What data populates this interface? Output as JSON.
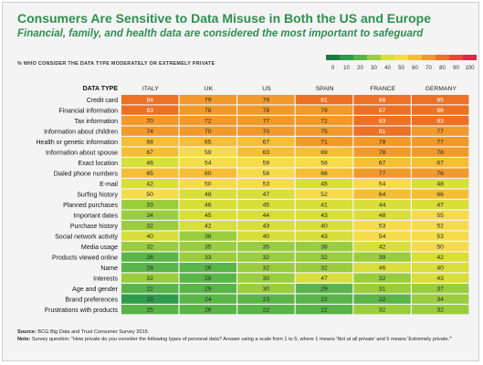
{
  "header": {
    "title": "Consumers Are Sensitive to Data Misuse in Both the US and Europe",
    "subtitle": "Financial, family, and health data are considered the most important to safeguard"
  },
  "legend": {
    "label": "% WHO CONSIDER THE DATA TYPE MODERATELY OR EXTREMELY PRIVATE",
    "ticks": [
      "0",
      "10",
      "20",
      "30",
      "40",
      "50",
      "60",
      "70",
      "80",
      "90",
      "100"
    ],
    "colors": [
      "#1a7a45",
      "#2e9a4b",
      "#5ab548",
      "#9acd3e",
      "#d8de3a",
      "#f6dc4c",
      "#f6be35",
      "#f19a2b",
      "#ec7124",
      "#e34a33",
      "#d62a4a"
    ]
  },
  "footer": {
    "source_label": "Source:",
    "source_text": "BCG Big Data and Trust Consumer Survey 2015.",
    "note_label": "Note:",
    "note_text": "Survey question: \"How private do you consider the following types of personal data? Answer using a scale from 1 to 5, where 1 means 'Not at all private' and 5 means 'Extremely private.'\""
  },
  "chart_data": {
    "type": "heatmap",
    "row_header": "DATA TYPE",
    "columns": [
      "ITALY",
      "UK",
      "US",
      "SPAIN",
      "FRANCE",
      "GERMANY"
    ],
    "rows": [
      "Credit card",
      "Financial information",
      "Tax information",
      "Information about children",
      "Health or genetic information",
      "Information about spouse",
      "Exact location",
      "Dialed phone numbers",
      "E-mail",
      "Surfing history",
      "Planned purchases",
      "Important dates",
      "Purchase history",
      "Social network activity",
      "Media usage",
      "Products viewed online",
      "Name",
      "Interests",
      "Age and gender",
      "Brand preferences",
      "Frustrations with products"
    ],
    "values": [
      [
        84,
        79,
        79,
        81,
        88,
        85
      ],
      [
        83,
        78,
        78,
        79,
        87,
        86
      ],
      [
        70,
        72,
        77,
        72,
        83,
        83
      ],
      [
        74,
        70,
        70,
        75,
        81,
        77
      ],
      [
        68,
        65,
        67,
        71,
        78,
        77
      ],
      [
        67,
        59,
        63,
        69,
        78,
        78
      ],
      [
        46,
        54,
        59,
        58,
        67,
        67
      ],
      [
        65,
        60,
        58,
        66,
        77,
        76
      ],
      [
        42,
        50,
        53,
        45,
        54,
        48
      ],
      [
        50,
        48,
        47,
        52,
        64,
        66
      ],
      [
        33,
        46,
        45,
        41,
        44,
        47
      ],
      [
        34,
        45,
        44,
        43,
        48,
        55
      ],
      [
        32,
        42,
        43,
        40,
        53,
        52
      ],
      [
        40,
        38,
        40,
        43,
        54,
        53
      ],
      [
        32,
        35,
        35,
        38,
        42,
        50
      ],
      [
        26,
        33,
        32,
        32,
        39,
        42
      ],
      [
        28,
        26,
        32,
        32,
        46,
        40
      ],
      [
        32,
        29,
        30,
        47,
        32,
        43
      ],
      [
        22,
        29,
        30,
        29,
        31,
        37
      ],
      [
        15,
        24,
        23,
        22,
        22,
        34
      ],
      [
        25,
        26,
        22,
        22,
        32,
        32
      ]
    ],
    "scale": [
      0,
      100
    ]
  }
}
